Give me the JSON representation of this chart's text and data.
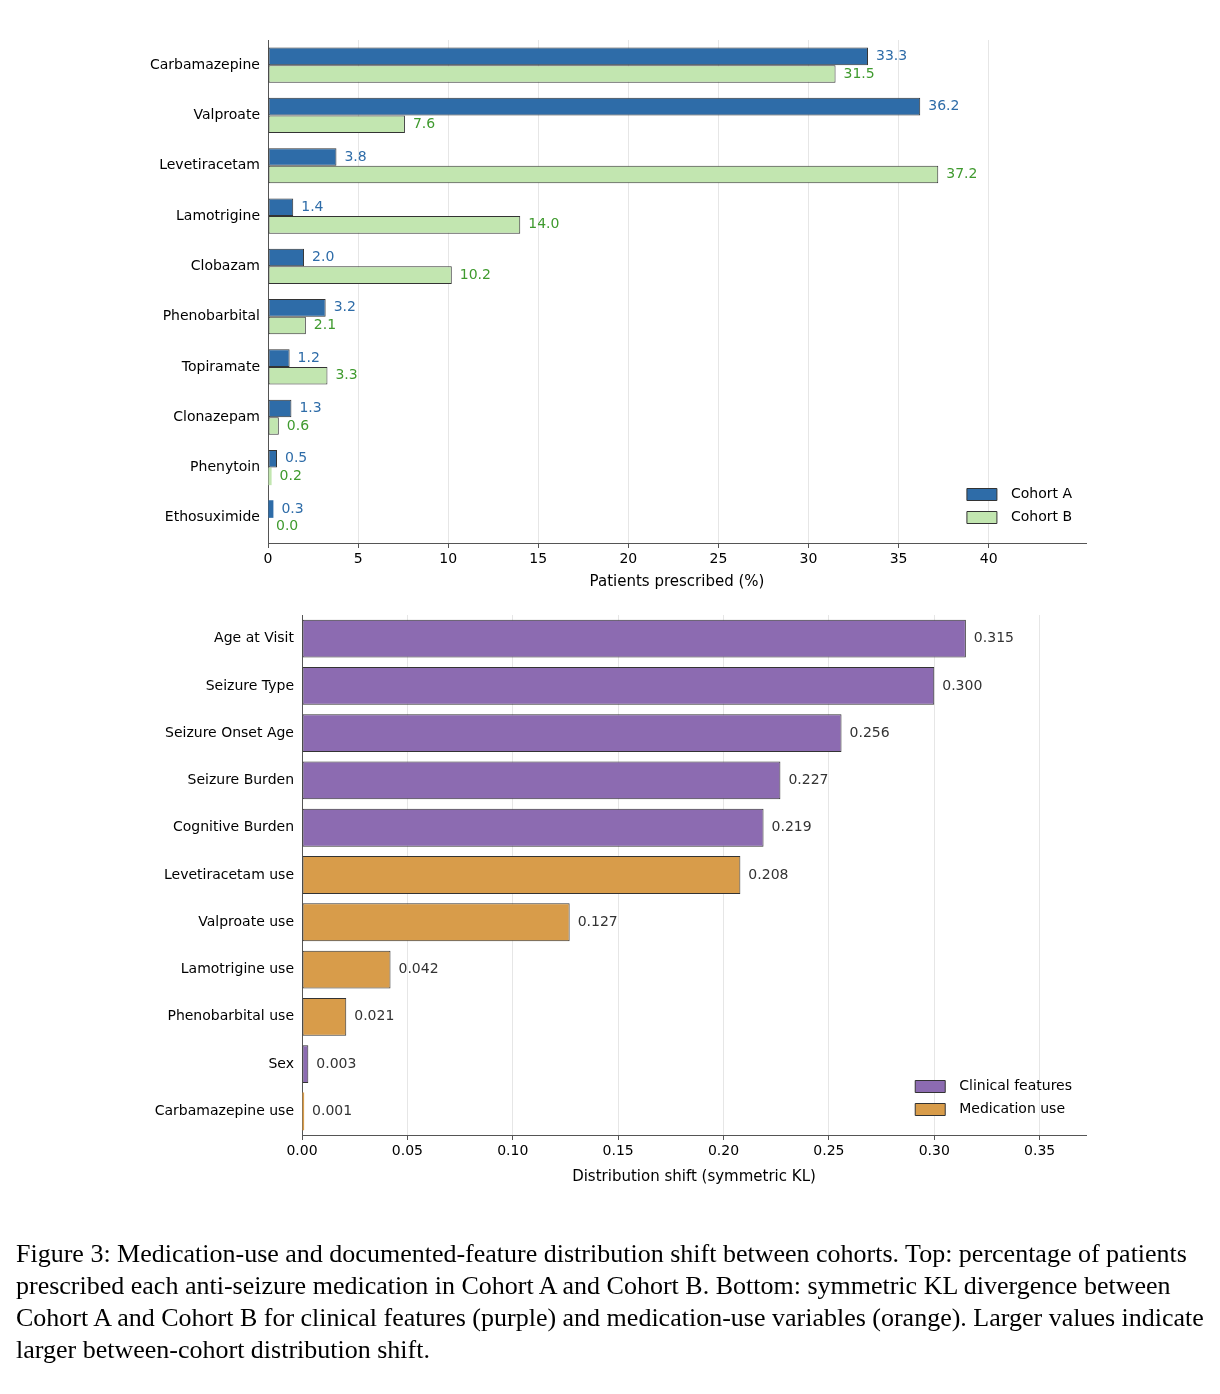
{
  "chart_data": [
    {
      "type": "bar",
      "orientation": "horizontal",
      "categories": [
        "Carbamazepine",
        "Valproate",
        "Levetiracetam",
        "Lamotrigine",
        "Clobazam",
        "Phenobarbital",
        "Topiramate",
        "Clonazepam",
        "Phenytoin",
        "Ethosuximide"
      ],
      "series": [
        {
          "name": "Cohort A",
          "color": "#2e6ca8",
          "values": [
            33.3,
            36.2,
            3.8,
            1.4,
            2.0,
            3.2,
            1.2,
            1.3,
            0.5,
            0.3
          ],
          "value_labels": [
            "33.3",
            "36.2",
            "3.8",
            "1.4",
            "2.0",
            "3.2",
            "1.2",
            "1.3",
            "0.5",
            "0.3"
          ]
        },
        {
          "name": "Cohort B",
          "color": "#c2e6b0",
          "values": [
            31.5,
            7.6,
            37.2,
            14.0,
            10.2,
            2.1,
            3.3,
            0.6,
            0.2,
            0.0
          ],
          "value_labels": [
            "31.5",
            "7.6",
            "37.2",
            "14.0",
            "10.2",
            "2.1",
            "3.3",
            "0.6",
            "0.2",
            "0.0"
          ]
        }
      ],
      "xlabel": "Patients prescribed (%)",
      "xlim": [
        0,
        45.4
      ],
      "xticks": [
        0,
        5,
        10,
        15,
        20,
        25,
        30,
        35,
        40
      ],
      "grid": "x",
      "legend": "bottom right"
    },
    {
      "type": "bar",
      "orientation": "horizontal",
      "stacked": true,
      "categories": [
        "Age at Visit",
        "Seizure Type",
        "Seizure Onset Age",
        "Seizure Burden",
        "Cognitive Burden",
        "Levetiracetam use",
        "Valproate use",
        "Lamotrigine use",
        "Phenobarbital use",
        "Sex",
        "Carbamazepine use"
      ],
      "series": [
        {
          "name": "Clinical features",
          "color": "#8c6bb1",
          "values": [
            0.315,
            0.3,
            0.256,
            0.227,
            0.219,
            null,
            null,
            null,
            null,
            0.003,
            null
          ],
          "value_labels": [
            "0.315",
            "0.300",
            "0.256",
            "0.227",
            "0.219",
            null,
            null,
            null,
            null,
            "0.003",
            null
          ]
        },
        {
          "name": "Medication use",
          "color": "#d89c4a",
          "values": [
            null,
            null,
            null,
            null,
            null,
            0.208,
            0.127,
            0.042,
            0.021,
            null,
            0.001
          ],
          "value_labels": [
            null,
            null,
            null,
            null,
            null,
            "0.208",
            "0.127",
            "0.042",
            "0.021",
            null,
            "0.001"
          ]
        }
      ],
      "xlabel": "Distribution shift (symmetric KL)",
      "xlim": [
        0,
        0.372
      ],
      "xticks": [
        {
          "value": 0,
          "label": "0.00"
        },
        {
          "value": 0.05,
          "label": "0.05"
        },
        {
          "value": 0.1,
          "label": "0.10"
        },
        {
          "value": 0.15,
          "label": "0.15"
        },
        {
          "value": 0.2,
          "label": "0.20"
        },
        {
          "value": 0.25,
          "label": "0.25"
        },
        {
          "value": 0.3,
          "label": "0.30"
        },
        {
          "value": 0.35,
          "label": "0.35"
        }
      ],
      "grid": "x",
      "legend": "bottom right",
      "annotations": [
        "Figure 3: Medication-use and documented-feature distribution shift between cohorts. Top: percentage of patients prescribed each anti-seizure medication in Cohort A and Cohort B. Bottom: symmetric KL divergence between Cohort A and Cohort B for clinical features (purple) and medication-use variables (orange). Larger values indicate larger between-cohort distribution shift."
      ]
    }
  ]
}
